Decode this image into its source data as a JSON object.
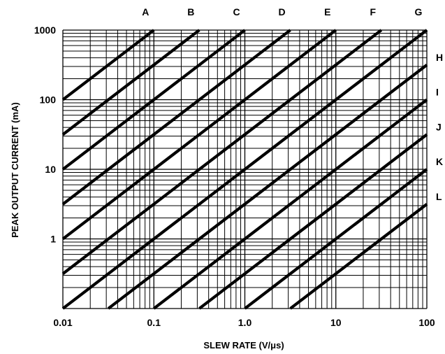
{
  "chart_data": {
    "type": "line",
    "xlabel": "SLEW RATE (V/μs)",
    "ylabel": "PEAK OUTPUT CURRENT (mA)",
    "x_scale": "log",
    "y_scale": "log",
    "xlim": [
      0.01,
      100
    ],
    "ylim": [
      0.1,
      1000
    ],
    "x_ticks": [
      {
        "value": 0.01,
        "label": "0.01"
      },
      {
        "value": 0.1,
        "label": "0.1"
      },
      {
        "value": 1,
        "label": "1.0"
      },
      {
        "value": 10,
        "label": "10"
      },
      {
        "value": 100,
        "label": "100"
      }
    ],
    "y_ticks": [
      {
        "value": 1,
        "label": "1"
      },
      {
        "value": 10,
        "label": "10"
      },
      {
        "value": 100,
        "label": "100"
      },
      {
        "value": 1000,
        "label": "1000"
      }
    ],
    "grid": true,
    "series": [
      {
        "name": "A",
        "slope": 1,
        "points": [
          [
            0.01,
            100
          ],
          [
            0.1,
            1000
          ]
        ]
      },
      {
        "name": "B",
        "slope": 1,
        "points": [
          [
            0.01,
            31.6
          ],
          [
            0.316,
            1000
          ]
        ]
      },
      {
        "name": "C",
        "slope": 1,
        "points": [
          [
            0.01,
            10
          ],
          [
            1,
            1000
          ]
        ]
      },
      {
        "name": "D",
        "slope": 1,
        "points": [
          [
            0.01,
            3.16
          ],
          [
            3.16,
            1000
          ]
        ]
      },
      {
        "name": "E",
        "slope": 1,
        "points": [
          [
            0.01,
            1
          ],
          [
            10,
            1000
          ]
        ]
      },
      {
        "name": "F",
        "slope": 1,
        "points": [
          [
            0.01,
            0.316
          ],
          [
            31.6,
            1000
          ]
        ]
      },
      {
        "name": "G",
        "slope": 1,
        "points": [
          [
            0.01,
            0.1
          ],
          [
            100,
            1000
          ]
        ]
      },
      {
        "name": "H",
        "slope": 1,
        "points": [
          [
            0.0316,
            0.1
          ],
          [
            100,
            316
          ]
        ]
      },
      {
        "name": "I",
        "slope": 1,
        "points": [
          [
            0.1,
            0.1
          ],
          [
            100,
            100
          ]
        ]
      },
      {
        "name": "J",
        "slope": 1,
        "points": [
          [
            0.316,
            0.1
          ],
          [
            100,
            31.6
          ]
        ]
      },
      {
        "name": "K",
        "slope": 1,
        "points": [
          [
            1,
            0.1
          ],
          [
            100,
            10
          ]
        ]
      },
      {
        "name": "L",
        "slope": 1,
        "points": [
          [
            3.16,
            0.1
          ],
          [
            100,
            3.16
          ]
        ]
      }
    ]
  }
}
